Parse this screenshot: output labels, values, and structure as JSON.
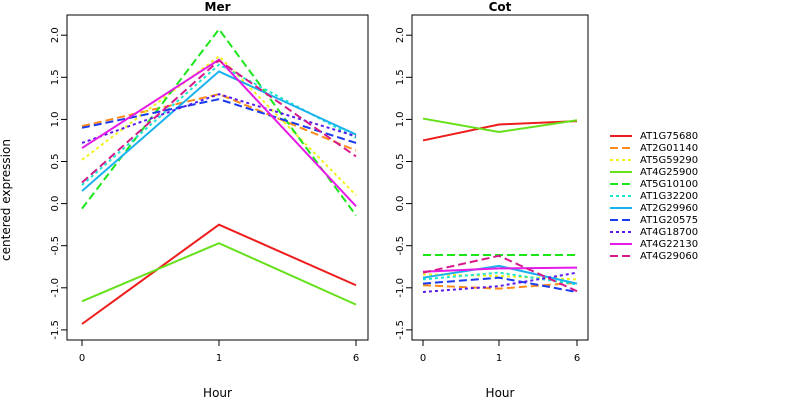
{
  "ylabel": "centered expression",
  "legend": {
    "position": "right",
    "entries": [
      {
        "name": "AT1G75680",
        "color": "#ee1c1c",
        "dash": "solid"
      },
      {
        "name": "AT2G01140",
        "color": "#ff8c1a",
        "dash": "dashed"
      },
      {
        "name": "AT5G59290",
        "color": "#f2f21a",
        "dash": "dotted"
      },
      {
        "name": "AT4G25900",
        "color": "#66e01a",
        "dash": "solid"
      },
      {
        "name": "AT5G10100",
        "color": "#1ae61a",
        "dash": "dashed"
      },
      {
        "name": "AT1G32200",
        "color": "#1ae6cc",
        "dash": "dotted"
      },
      {
        "name": "AT2G29960",
        "color": "#1ab2ee",
        "dash": "solid"
      },
      {
        "name": "AT1G20575",
        "color": "#1a3aee",
        "dash": "dashed"
      },
      {
        "name": "AT4G18700",
        "color": "#5a1aee",
        "dash": "dotted"
      },
      {
        "name": "AT4G22130",
        "color": "#e61ae6",
        "dash": "solid"
      },
      {
        "name": "AT4G29060",
        "color": "#d61a8c",
        "dash": "dashed"
      }
    ]
  },
  "chart_data": [
    {
      "type": "line",
      "title": "Mer",
      "xlabel": "Hour",
      "ylabel": "centered expression",
      "categories": [
        "0",
        "1",
        "6"
      ],
      "ylim": [
        -1.5,
        2.2
      ],
      "yticks": [
        "-1.5",
        "-1.0",
        "-0.5",
        "0.0",
        "0.5",
        "1.0",
        "1.5",
        "2.0"
      ],
      "series": [
        {
          "name": "AT1G75680",
          "values": [
            -1.43,
            -0.25,
            -0.97
          ]
        },
        {
          "name": "AT2G01140",
          "values": [
            0.92,
            1.3,
            0.63
          ]
        },
        {
          "name": "AT5G59290",
          "values": [
            0.52,
            1.75,
            0.1
          ]
        },
        {
          "name": "AT4G25900",
          "values": [
            -1.16,
            -0.47,
            -1.2
          ]
        },
        {
          "name": "AT5G10100",
          "values": [
            -0.06,
            2.07,
            -0.14
          ]
        },
        {
          "name": "AT1G32200",
          "values": [
            0.22,
            1.65,
            0.78
          ]
        },
        {
          "name": "AT2G29960",
          "values": [
            0.15,
            1.57,
            0.82
          ]
        },
        {
          "name": "AT1G20575",
          "values": [
            0.9,
            1.24,
            0.72
          ]
        },
        {
          "name": "AT4G18700",
          "values": [
            0.72,
            1.3,
            0.8
          ]
        },
        {
          "name": "AT4G22130",
          "values": [
            0.66,
            1.71,
            -0.03
          ]
        },
        {
          "name": "AT4G29060",
          "values": [
            0.25,
            1.7,
            0.56
          ]
        }
      ]
    },
    {
      "type": "line",
      "title": "Cot",
      "xlabel": "Hour",
      "categories": [
        "0",
        "1",
        "6"
      ],
      "ylim": [
        -1.5,
        2.2
      ],
      "yticks": [
        "-1.5",
        "-1.0",
        "-0.5",
        "0.0",
        "0.5",
        "1.0",
        "1.5",
        "2.0"
      ],
      "series": [
        {
          "name": "AT1G75680",
          "values": [
            0.75,
            0.94,
            0.98
          ]
        },
        {
          "name": "AT2G01140",
          "values": [
            -0.97,
            -1.01,
            -0.94
          ]
        },
        {
          "name": "AT5G59290",
          "values": [
            -0.84,
            -0.86,
            -0.9
          ]
        },
        {
          "name": "AT4G25900",
          "values": [
            1.01,
            0.85,
            0.99
          ]
        },
        {
          "name": "AT5G10100",
          "values": [
            -0.61,
            -0.61,
            -0.61
          ]
        },
        {
          "name": "AT1G32200",
          "values": [
            -0.9,
            -0.82,
            -0.96
          ]
        },
        {
          "name": "AT2G29960",
          "values": [
            -0.88,
            -0.74,
            -0.95
          ]
        },
        {
          "name": "AT1G20575",
          "values": [
            -0.95,
            -0.88,
            -1.05
          ]
        },
        {
          "name": "AT4G18700",
          "values": [
            -1.05,
            -0.98,
            -0.82
          ]
        },
        {
          "name": "AT4G22130",
          "values": [
            -0.81,
            -0.77,
            -0.76
          ]
        },
        {
          "name": "AT4G29060",
          "values": [
            -0.82,
            -0.62,
            -1.04
          ]
        }
      ]
    }
  ]
}
